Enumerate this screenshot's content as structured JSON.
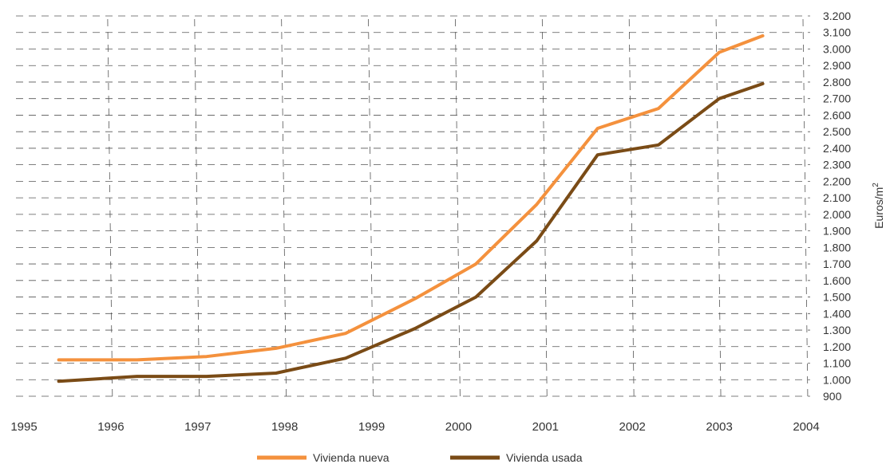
{
  "chart_data": {
    "type": "line",
    "title": "",
    "xlabel": "",
    "ylabel": "Euros/m",
    "ylabel_superscript": "2",
    "xlim": [
      1995,
      2004
    ],
    "ylim": [
      900,
      3200
    ],
    "x_ticks": [
      "1995",
      "1996",
      "1997",
      "1998",
      "1999",
      "2000",
      "2001",
      "2002",
      "2003",
      "2004"
    ],
    "y_ticks": [
      "900",
      "1.000",
      "1.100",
      "1.200",
      "1.300",
      "1.400",
      "1.500",
      "1.600",
      "1.700",
      "1.800",
      "1.900",
      "2.000",
      "2.100",
      "2.200",
      "2.300",
      "2.400",
      "2.500",
      "2.600",
      "2.700",
      "2.800",
      "2.900",
      "3.000",
      "3.100",
      "3.200"
    ],
    "y_tick_values": [
      900,
      1000,
      1100,
      1200,
      1300,
      1400,
      1500,
      1600,
      1700,
      1800,
      1900,
      2000,
      2100,
      2200,
      2300,
      2400,
      2500,
      2600,
      2700,
      2800,
      2900,
      3000,
      3100,
      3200
    ],
    "grid": true,
    "legend_position": "bottom",
    "series": [
      {
        "name": "Vivienda nueva",
        "color": "#f4913d",
        "x": [
          1995.4,
          1996.3,
          1997.1,
          1997.9,
          1998.7,
          1999.5,
          2000.2,
          2000.9,
          2001.6,
          2002.3,
          2003.0,
          2003.5
        ],
        "values": [
          1120,
          1120,
          1140,
          1190,
          1280,
          1490,
          1700,
          2060,
          2520,
          2640,
          2980,
          3080
        ]
      },
      {
        "name": "Vivienda usada",
        "color": "#7a4b16",
        "x": [
          1995.4,
          1996.3,
          1997.1,
          1997.9,
          1998.7,
          1999.5,
          2000.2,
          2000.9,
          2001.6,
          2002.3,
          2003.0,
          2003.5
        ],
        "values": [
          990,
          1020,
          1020,
          1040,
          1130,
          1310,
          1500,
          1840,
          2360,
          2420,
          2700,
          2790
        ]
      }
    ]
  }
}
